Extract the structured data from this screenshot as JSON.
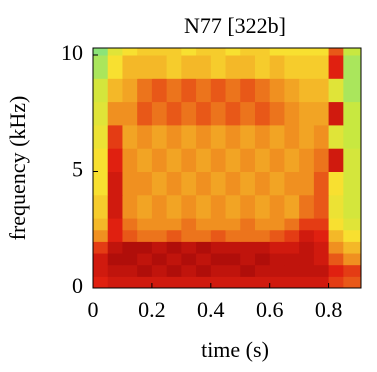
{
  "chart_data": {
    "type": "heatmap",
    "title": "N77 [322b]",
    "x_label": "time (s)",
    "y_label": "frequency (kHz)",
    "xlim": [
      0,
      0.91
    ],
    "ylim": [
      0,
      10.3
    ],
    "xticks": [
      0,
      0.2,
      0.4,
      0.6,
      0.8
    ],
    "yticks": [
      0,
      5,
      10
    ],
    "xbins": [
      0,
      0.05,
      0.1,
      0.15,
      0.2,
      0.25,
      0.3,
      0.35,
      0.4,
      0.45,
      0.5,
      0.55,
      0.6,
      0.65,
      0.7,
      0.75,
      0.8,
      0.85,
      0.91
    ],
    "ybins": [
      0,
      0.5,
      1,
      1.5,
      2,
      2.5,
      3,
      4,
      5,
      6,
      7,
      8,
      9,
      10,
      10.3
    ],
    "zlim": [
      0,
      1
    ],
    "colormap": [
      "#50e0b0",
      "#c8e840",
      "#f8e030",
      "#f09020",
      "#e02010",
      "#a00808"
    ],
    "z": [
      [
        0.8,
        0.85,
        0.85,
        0.85,
        0.85,
        0.85,
        0.85,
        0.85,
        0.85,
        0.85,
        0.85,
        0.85,
        0.85,
        0.85,
        0.85,
        0.85,
        0.75,
        0.7
      ],
      [
        0.85,
        0.9,
        0.9,
        0.95,
        0.9,
        0.95,
        0.9,
        0.95,
        0.9,
        0.9,
        0.95,
        0.9,
        0.9,
        0.9,
        0.9,
        0.9,
        0.8,
        0.75
      ],
      [
        0.85,
        0.95,
        0.95,
        0.9,
        0.95,
        0.9,
        0.95,
        0.9,
        0.95,
        0.95,
        0.9,
        0.95,
        0.9,
        0.9,
        0.9,
        0.85,
        0.7,
        0.6
      ],
      [
        0.75,
        0.9,
        0.95,
        0.95,
        0.9,
        0.95,
        0.9,
        0.95,
        0.9,
        0.9,
        0.9,
        0.9,
        0.85,
        0.85,
        0.9,
        0.85,
        0.6,
        0.5
      ],
      [
        0.6,
        0.8,
        0.7,
        0.65,
        0.65,
        0.7,
        0.65,
        0.65,
        0.7,
        0.65,
        0.65,
        0.65,
        0.7,
        0.75,
        0.85,
        0.8,
        0.5,
        0.4
      ],
      [
        0.5,
        0.8,
        0.65,
        0.6,
        0.6,
        0.6,
        0.65,
        0.6,
        0.6,
        0.6,
        0.65,
        0.6,
        0.6,
        0.65,
        0.75,
        0.75,
        0.4,
        0.3
      ],
      [
        0.45,
        0.85,
        0.6,
        0.55,
        0.6,
        0.55,
        0.6,
        0.55,
        0.6,
        0.55,
        0.6,
        0.55,
        0.6,
        0.55,
        0.65,
        0.7,
        0.35,
        0.25
      ],
      [
        0.4,
        0.85,
        0.6,
        0.6,
        0.55,
        0.6,
        0.55,
        0.6,
        0.55,
        0.6,
        0.55,
        0.6,
        0.55,
        0.6,
        0.6,
        0.7,
        0.4,
        0.25
      ],
      [
        0.4,
        0.8,
        0.6,
        0.55,
        0.6,
        0.55,
        0.6,
        0.55,
        0.6,
        0.55,
        0.6,
        0.55,
        0.6,
        0.55,
        0.6,
        0.65,
        0.85,
        0.25
      ],
      [
        0.35,
        0.75,
        0.55,
        0.6,
        0.55,
        0.6,
        0.55,
        0.6,
        0.55,
        0.6,
        0.55,
        0.6,
        0.55,
        0.6,
        0.55,
        0.6,
        0.3,
        0.2
      ],
      [
        0.3,
        0.6,
        0.6,
        0.7,
        0.65,
        0.7,
        0.65,
        0.7,
        0.65,
        0.7,
        0.65,
        0.7,
        0.65,
        0.6,
        0.55,
        0.55,
        0.85,
        0.2
      ],
      [
        0.25,
        0.5,
        0.55,
        0.65,
        0.7,
        0.65,
        0.7,
        0.65,
        0.7,
        0.65,
        0.7,
        0.65,
        0.6,
        0.55,
        0.5,
        0.5,
        0.3,
        0.15
      ],
      [
        0.15,
        0.4,
        0.5,
        0.5,
        0.5,
        0.45,
        0.5,
        0.5,
        0.45,
        0.5,
        0.5,
        0.45,
        0.5,
        0.45,
        0.45,
        0.45,
        0.8,
        0.15
      ],
      [
        0.1,
        0.3,
        0.4,
        0.45,
        0.45,
        0.45,
        0.4,
        0.45,
        0.45,
        0.4,
        0.45,
        0.45,
        0.4,
        0.4,
        0.4,
        0.4,
        0.7,
        0.2
      ]
    ]
  }
}
